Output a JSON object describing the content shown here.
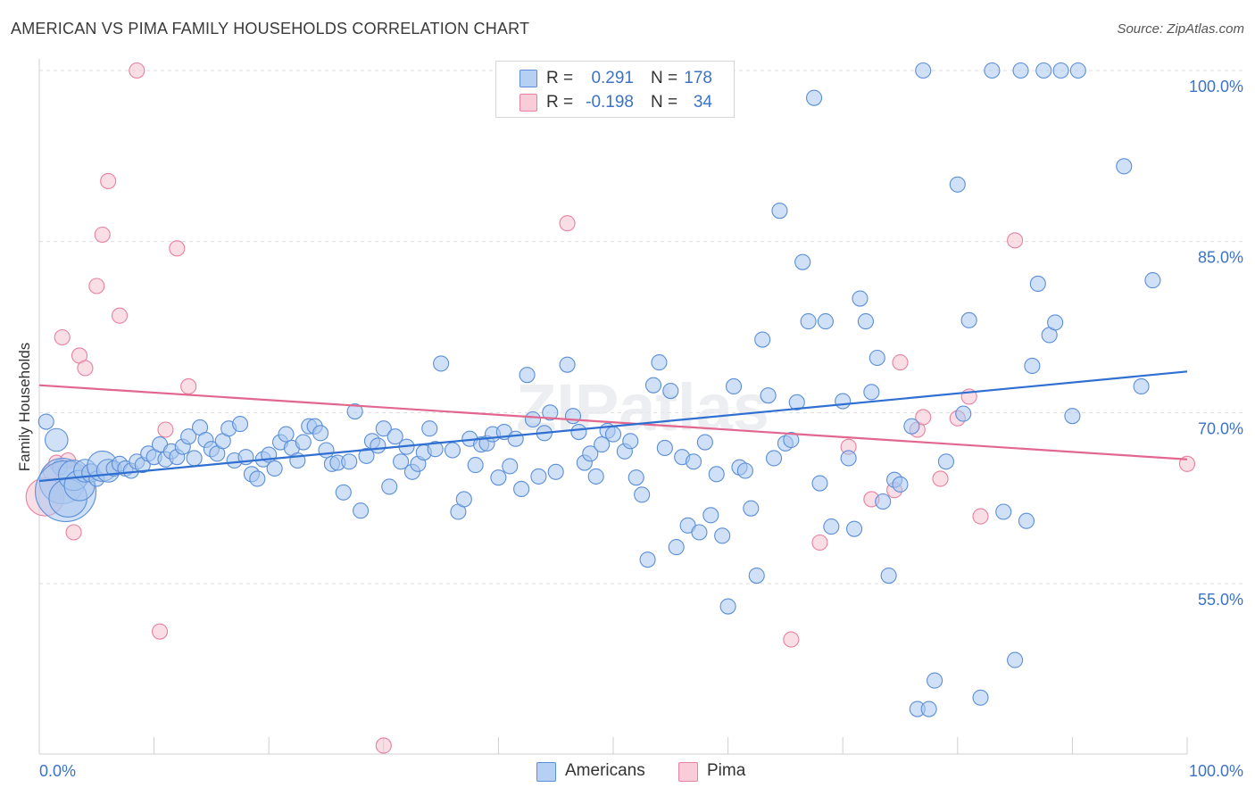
{
  "title": "AMERICAN VS PIMA FAMILY HOUSEHOLDS CORRELATION CHART",
  "source": "Source: ZipAtlas.com",
  "watermark": "ZIPatlas",
  "legend": {
    "rows": [
      {
        "r_label": "R =",
        "r_value": "0.291",
        "n_label": "N =",
        "n_value": "178"
      },
      {
        "r_label": "R =",
        "r_value": "-0.198",
        "n_label": "N =",
        "n_value": "34"
      }
    ]
  },
  "bottom_legend": [
    "Americans",
    "Pima"
  ],
  "chart_data": {
    "type": "scatter",
    "xlabel": "",
    "ylabel": "Family Households",
    "xlim": [
      0,
      100
    ],
    "ylim": [
      40,
      101
    ],
    "x_tick_labels": [
      "0.0%",
      "100.0%"
    ],
    "y_ticks": [
      55,
      70,
      85,
      100
    ],
    "y_tick_labels": [
      "55.0%",
      "70.0%",
      "85.0%",
      "100.0%"
    ],
    "grid": "dashed horizontal",
    "colors": {
      "americans_fill": "#a9c7ee",
      "americans_stroke": "#5b8fd8",
      "americans_line": "#2f6fd1",
      "pima_fill": "#f6c3d2",
      "pima_stroke": "#e8809f",
      "pima_line": "#e2678f",
      "axis_text": "#3b73c8"
    },
    "series": [
      {
        "name": "Americans",
        "trend": [
          [
            0,
            64.0
          ],
          [
            100,
            73.6
          ]
        ],
        "points": [
          [
            0.6,
            69.2,
            1
          ],
          [
            1.5,
            67.6,
            1.5
          ],
          [
            1.8,
            65.2,
            1
          ],
          [
            2.0,
            64.0,
            3
          ],
          [
            2.3,
            63.1,
            4
          ],
          [
            2.5,
            62.5,
            2.5
          ],
          [
            3.0,
            64.5,
            2
          ],
          [
            3.5,
            63.6,
            2
          ],
          [
            4.0,
            64.9,
            1.5
          ],
          [
            4.5,
            64.7,
            1.2
          ],
          [
            5.0,
            64.2,
            1
          ],
          [
            5.5,
            65.3,
            2
          ],
          [
            6.0,
            64.9,
            1.5
          ],
          [
            6.5,
            65.1,
            1
          ],
          [
            7.0,
            65.5,
            1
          ],
          [
            7.5,
            65.1,
            1
          ],
          [
            8.0,
            64.9,
            1
          ],
          [
            8.5,
            65.7,
            1
          ],
          [
            9.0,
            65.4,
            1
          ],
          [
            9.5,
            66.4,
            1
          ],
          [
            10.0,
            66.1,
            1
          ],
          [
            10.5,
            67.2,
            1
          ],
          [
            11.0,
            65.9,
            1
          ],
          [
            11.5,
            66.6,
            1
          ],
          [
            12.0,
            66.1,
            1
          ],
          [
            12.5,
            67.0,
            1
          ],
          [
            13.0,
            67.9,
            1
          ],
          [
            13.5,
            66.0,
            1
          ],
          [
            14.0,
            68.7,
            1
          ],
          [
            14.5,
            67.6,
            1
          ],
          [
            15.0,
            66.8,
            1
          ],
          [
            15.5,
            66.4,
            1
          ],
          [
            16.0,
            67.5,
            1
          ],
          [
            16.5,
            68.6,
            1
          ],
          [
            17.0,
            65.8,
            1
          ],
          [
            17.5,
            69.0,
            1
          ],
          [
            18.0,
            66.1,
            1
          ],
          [
            18.5,
            64.6,
            1
          ],
          [
            19.0,
            64.2,
            1
          ],
          [
            19.5,
            65.9,
            1
          ],
          [
            20.0,
            66.3,
            1
          ],
          [
            20.5,
            65.1,
            1
          ],
          [
            21.0,
            67.4,
            1
          ],
          [
            21.5,
            68.1,
            1
          ],
          [
            22.0,
            66.9,
            1
          ],
          [
            22.5,
            65.8,
            1
          ],
          [
            23.0,
            67.4,
            1
          ],
          [
            23.5,
            68.8,
            1
          ],
          [
            24.0,
            68.8,
            1
          ],
          [
            24.5,
            68.2,
            1
          ],
          [
            25.0,
            66.7,
            1
          ],
          [
            25.5,
            65.5,
            1
          ],
          [
            26.0,
            65.6,
            1
          ],
          [
            26.5,
            63.0,
            1
          ],
          [
            27.0,
            65.7,
            1
          ],
          [
            27.5,
            70.1,
            1
          ],
          [
            28.0,
            61.4,
            1
          ],
          [
            28.5,
            66.2,
            1
          ],
          [
            29.0,
            67.5,
            1
          ],
          [
            29.5,
            67.1,
            1
          ],
          [
            30.0,
            68.6,
            1
          ],
          [
            30.5,
            63.5,
            1
          ],
          [
            31.0,
            67.9,
            1
          ],
          [
            31.5,
            65.7,
            1
          ],
          [
            32.0,
            67.0,
            1
          ],
          [
            32.5,
            64.8,
            1
          ],
          [
            33.0,
            65.5,
            1
          ],
          [
            33.5,
            66.5,
            1
          ],
          [
            34.0,
            68.6,
            1
          ],
          [
            34.5,
            66.8,
            1
          ],
          [
            35.0,
            74.3,
            1
          ],
          [
            36.0,
            66.7,
            1
          ],
          [
            36.5,
            61.3,
            1
          ],
          [
            37.0,
            62.4,
            1
          ],
          [
            37.5,
            67.7,
            1
          ],
          [
            38.0,
            65.4,
            1
          ],
          [
            38.5,
            67.2,
            1
          ],
          [
            39.0,
            67.3,
            1
          ],
          [
            39.5,
            68.1,
            1
          ],
          [
            40.0,
            64.3,
            1
          ],
          [
            40.5,
            68.3,
            1
          ],
          [
            41.0,
            65.3,
            1
          ],
          [
            41.5,
            67.7,
            1
          ],
          [
            42.0,
            63.3,
            1
          ],
          [
            42.5,
            73.3,
            1
          ],
          [
            43.0,
            69.4,
            1
          ],
          [
            43.5,
            64.4,
            1
          ],
          [
            44.0,
            68.2,
            1
          ],
          [
            44.5,
            70.0,
            1
          ],
          [
            45.0,
            64.8,
            1
          ],
          [
            46.0,
            74.2,
            1
          ],
          [
            46.5,
            69.7,
            1
          ],
          [
            47.0,
            68.3,
            1
          ],
          [
            47.5,
            65.6,
            1
          ],
          [
            48.0,
            66.4,
            1
          ],
          [
            48.5,
            64.4,
            1
          ],
          [
            49.0,
            67.2,
            1
          ],
          [
            49.5,
            68.4,
            1
          ],
          [
            50.0,
            68.1,
            1
          ],
          [
            51.0,
            66.6,
            1
          ],
          [
            51.5,
            67.5,
            1
          ],
          [
            52.0,
            64.3,
            1
          ],
          [
            52.5,
            62.8,
            1
          ],
          [
            53.0,
            57.1,
            1
          ],
          [
            53.5,
            72.4,
            1
          ],
          [
            54.0,
            74.4,
            1
          ],
          [
            54.5,
            66.9,
            1
          ],
          [
            55.0,
            71.9,
            1
          ],
          [
            55.5,
            58.2,
            1
          ],
          [
            56.0,
            66.1,
            1
          ],
          [
            56.5,
            60.1,
            1
          ],
          [
            57.0,
            65.7,
            1
          ],
          [
            57.5,
            59.5,
            1
          ],
          [
            58.0,
            67.4,
            1
          ],
          [
            58.5,
            61.0,
            1
          ],
          [
            59.0,
            64.6,
            1
          ],
          [
            59.5,
            59.2,
            1
          ],
          [
            60.0,
            53.0,
            1
          ],
          [
            60.5,
            72.3,
            1
          ],
          [
            61.0,
            65.2,
            1
          ],
          [
            61.5,
            64.9,
            1
          ],
          [
            62.0,
            61.6,
            1
          ],
          [
            62.5,
            55.7,
            1
          ],
          [
            63.0,
            76.4,
            1
          ],
          [
            63.5,
            71.5,
            1
          ],
          [
            64.0,
            66.0,
            1
          ],
          [
            64.5,
            87.7,
            1
          ],
          [
            65.0,
            67.3,
            1
          ],
          [
            65.5,
            67.6,
            1
          ],
          [
            66.0,
            70.9,
            1
          ],
          [
            66.5,
            83.2,
            1
          ],
          [
            67.0,
            78.0,
            1
          ],
          [
            67.5,
            97.6,
            1
          ],
          [
            68.0,
            63.8,
            1
          ],
          [
            68.5,
            78.0,
            1
          ],
          [
            69.0,
            60.0,
            1
          ],
          [
            70.0,
            71.0,
            1
          ],
          [
            70.5,
            66.0,
            1
          ],
          [
            71.0,
            59.8,
            1
          ],
          [
            71.5,
            80.0,
            1
          ],
          [
            72.0,
            78.0,
            1
          ],
          [
            72.5,
            71.8,
            1
          ],
          [
            73.0,
            74.8,
            1
          ],
          [
            73.5,
            62.2,
            1
          ],
          [
            74.0,
            55.7,
            1
          ],
          [
            74.5,
            64.1,
            1
          ],
          [
            75.0,
            63.7,
            1
          ],
          [
            76.0,
            68.8,
            1
          ],
          [
            76.5,
            44.0,
            1
          ],
          [
            77.0,
            100.0,
            1
          ],
          [
            77.5,
            44.0,
            1
          ],
          [
            78.0,
            46.5,
            1
          ],
          [
            79.0,
            65.7,
            1
          ],
          [
            80.0,
            90.0,
            1
          ],
          [
            80.5,
            69.9,
            1
          ],
          [
            81.0,
            78.1,
            1
          ],
          [
            82.0,
            45.0,
            1
          ],
          [
            83.0,
            100.0,
            1
          ],
          [
            84.0,
            61.3,
            1
          ],
          [
            85.0,
            48.3,
            1
          ],
          [
            85.5,
            100.0,
            1
          ],
          [
            86.0,
            60.5,
            1
          ],
          [
            86.5,
            74.1,
            1
          ],
          [
            87.0,
            81.3,
            1
          ],
          [
            87.5,
            100.0,
            1
          ],
          [
            88.0,
            76.8,
            1
          ],
          [
            88.5,
            77.9,
            1
          ],
          [
            89.0,
            100.0,
            1
          ],
          [
            90.0,
            69.7,
            1
          ],
          [
            90.5,
            100.0,
            1
          ],
          [
            94.5,
            91.6,
            1
          ],
          [
            96.0,
            72.3,
            1
          ],
          [
            97.0,
            81.6,
            1
          ]
        ]
      },
      {
        "name": "Pima",
        "trend": [
          [
            0,
            72.4
          ],
          [
            100,
            65.9
          ]
        ],
        "points": [
          [
            0.5,
            62.6,
            2.5
          ],
          [
            1.0,
            64.8,
            1
          ],
          [
            1.5,
            65.6,
            1
          ],
          [
            2.0,
            76.6,
            1
          ],
          [
            2.5,
            65.8,
            1
          ],
          [
            3.0,
            59.5,
            1
          ],
          [
            3.5,
            75.0,
            1
          ],
          [
            4.0,
            73.9,
            1
          ],
          [
            5.0,
            81.1,
            1
          ],
          [
            5.5,
            85.6,
            1
          ],
          [
            6.0,
            90.3,
            1
          ],
          [
            7.0,
            78.5,
            1
          ],
          [
            8.5,
            100.0,
            1
          ],
          [
            10.5,
            50.8,
            1
          ],
          [
            11.0,
            68.5,
            1
          ],
          [
            12.0,
            84.4,
            1
          ],
          [
            13.0,
            72.3,
            1
          ],
          [
            30.0,
            40.8,
            1
          ],
          [
            46.0,
            86.6,
            1
          ],
          [
            65.5,
            50.1,
            1
          ],
          [
            68.0,
            58.6,
            1
          ],
          [
            70.5,
            67.0,
            1
          ],
          [
            72.5,
            62.4,
            1
          ],
          [
            74.5,
            63.2,
            1
          ],
          [
            75.0,
            74.4,
            1
          ],
          [
            76.5,
            68.5,
            1
          ],
          [
            77.0,
            69.6,
            1
          ],
          [
            78.5,
            64.2,
            1
          ],
          [
            80.0,
            69.5,
            1
          ],
          [
            81.0,
            71.4,
            1
          ],
          [
            82.0,
            60.9,
            1
          ],
          [
            85.0,
            85.1,
            1
          ],
          [
            100.0,
            65.5,
            1
          ]
        ]
      }
    ]
  }
}
